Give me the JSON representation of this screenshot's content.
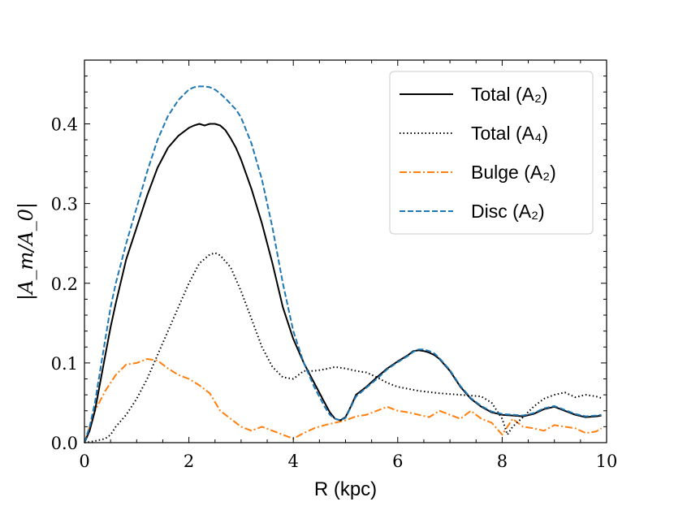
{
  "chart_data": {
    "type": "line",
    "title": "",
    "xlabel": "R (kpc)",
    "ylabel": "|A_m/A_0|",
    "xlim": [
      0,
      10
    ],
    "ylim": [
      0,
      0.48
    ],
    "x_ticks": [
      0,
      2,
      4,
      6,
      8,
      10
    ],
    "x_tick_labels": [
      "0",
      "2",
      "4",
      "6",
      "8",
      "10"
    ],
    "y_ticks": [
      0.0,
      0.1,
      0.2,
      0.3,
      0.4
    ],
    "y_tick_labels": [
      "0.0",
      "0.1",
      "0.2",
      "0.3",
      "0.4"
    ],
    "grid": false,
    "legend_position": "top-right",
    "series": [
      {
        "name": "Total (A_2)",
        "legend_label": "Total (A₂)",
        "color": "#000000",
        "style": "solid",
        "x": [
          0,
          0.1,
          0.2,
          0.3,
          0.4,
          0.5,
          0.6,
          0.8,
          1.0,
          1.2,
          1.4,
          1.6,
          1.8,
          2.0,
          2.1,
          2.2,
          2.3,
          2.4,
          2.5,
          2.6,
          2.7,
          2.8,
          2.9,
          3.0,
          3.2,
          3.4,
          3.6,
          3.8,
          4.0,
          4.2,
          4.4,
          4.6,
          4.7,
          4.8,
          4.9,
          5.0,
          5.1,
          5.2,
          5.4,
          5.6,
          5.8,
          6.0,
          6.2,
          6.3,
          6.4,
          6.5,
          6.6,
          6.7,
          6.8,
          7.0,
          7.2,
          7.4,
          7.6,
          7.8,
          8.0,
          8.2,
          8.4,
          8.6,
          8.8,
          9.0,
          9.2,
          9.4,
          9.6,
          9.8,
          9.9
        ],
        "y": [
          0.0,
          0.015,
          0.04,
          0.075,
          0.11,
          0.145,
          0.175,
          0.23,
          0.27,
          0.31,
          0.345,
          0.37,
          0.385,
          0.395,
          0.398,
          0.4,
          0.398,
          0.4,
          0.4,
          0.398,
          0.392,
          0.382,
          0.37,
          0.355,
          0.318,
          0.275,
          0.225,
          0.17,
          0.13,
          0.1,
          0.075,
          0.05,
          0.038,
          0.03,
          0.028,
          0.032,
          0.045,
          0.06,
          0.07,
          0.082,
          0.093,
          0.102,
          0.11,
          0.115,
          0.116,
          0.115,
          0.113,
          0.11,
          0.105,
          0.09,
          0.07,
          0.055,
          0.045,
          0.038,
          0.035,
          0.034,
          0.033,
          0.036,
          0.042,
          0.045,
          0.04,
          0.035,
          0.032,
          0.033,
          0.034
        ]
      },
      {
        "name": "Total (A_4)",
        "legend_label": "Total (A₄)",
        "color": "#000000",
        "style": "dotted",
        "x": [
          0,
          0.2,
          0.4,
          0.5,
          0.6,
          0.8,
          1.0,
          1.2,
          1.4,
          1.6,
          1.8,
          2.0,
          2.2,
          2.4,
          2.5,
          2.6,
          2.8,
          3.0,
          3.2,
          3.4,
          3.6,
          3.8,
          4.0,
          4.2,
          4.4,
          4.6,
          4.8,
          5.0,
          5.2,
          5.4,
          5.6,
          5.8,
          6.0,
          6.4,
          6.8,
          7.2,
          7.6,
          7.8,
          8.0,
          8.1,
          8.2,
          8.4,
          8.6,
          8.8,
          9.0,
          9.2,
          9.4,
          9.6,
          9.8,
          9.9
        ],
        "y": [
          0.0,
          0.002,
          0.005,
          0.01,
          0.02,
          0.035,
          0.055,
          0.08,
          0.11,
          0.14,
          0.17,
          0.2,
          0.225,
          0.236,
          0.238,
          0.235,
          0.22,
          0.19,
          0.155,
          0.12,
          0.095,
          0.082,
          0.08,
          0.09,
          0.09,
          0.092,
          0.095,
          0.093,
          0.09,
          0.088,
          0.082,
          0.075,
          0.07,
          0.065,
          0.062,
          0.06,
          0.058,
          0.05,
          0.03,
          0.01,
          0.02,
          0.032,
          0.045,
          0.055,
          0.06,
          0.063,
          0.057,
          0.06,
          0.058,
          0.056
        ]
      },
      {
        "name": "Bulge (A_2)",
        "legend_label": "Bulge (A₂)",
        "color": "#ff7f0e",
        "style": "dashdot",
        "x": [
          0,
          0.1,
          0.2,
          0.4,
          0.6,
          0.8,
          1.0,
          1.2,
          1.4,
          1.6,
          1.8,
          2.0,
          2.2,
          2.4,
          2.6,
          2.8,
          3.0,
          3.2,
          3.4,
          3.6,
          3.8,
          4.0,
          4.2,
          4.4,
          4.6,
          4.8,
          5.0,
          5.2,
          5.4,
          5.6,
          5.8,
          6.0,
          6.2,
          6.4,
          6.6,
          6.8,
          7.0,
          7.2,
          7.4,
          7.6,
          7.8,
          8.0,
          8.2,
          8.4,
          8.6,
          8.8,
          9.0,
          9.2,
          9.4,
          9.6,
          9.8,
          9.9
        ],
        "y": [
          0.0,
          0.02,
          0.04,
          0.065,
          0.085,
          0.098,
          0.1,
          0.105,
          0.103,
          0.093,
          0.085,
          0.08,
          0.072,
          0.062,
          0.04,
          0.03,
          0.02,
          0.015,
          0.02,
          0.015,
          0.01,
          0.005,
          0.012,
          0.018,
          0.022,
          0.025,
          0.028,
          0.033,
          0.035,
          0.04,
          0.045,
          0.04,
          0.038,
          0.035,
          0.032,
          0.04,
          0.035,
          0.03,
          0.04,
          0.03,
          0.025,
          0.01,
          0.03,
          0.02,
          0.018,
          0.015,
          0.022,
          0.02,
          0.018,
          0.012,
          0.014,
          0.018
        ]
      },
      {
        "name": "Disc (A_2)",
        "legend_label": "Disc (A₂)",
        "color": "#1f77b4",
        "style": "dashed",
        "x": [
          0,
          0.1,
          0.2,
          0.3,
          0.4,
          0.5,
          0.6,
          0.8,
          1.0,
          1.2,
          1.4,
          1.6,
          1.8,
          2.0,
          2.1,
          2.2,
          2.3,
          2.4,
          2.5,
          2.6,
          2.7,
          2.8,
          2.9,
          3.0,
          3.2,
          3.4,
          3.6,
          3.8,
          4.0,
          4.2,
          4.4,
          4.6,
          4.7,
          4.8,
          4.9,
          5.0,
          5.1,
          5.2,
          5.4,
          5.6,
          5.8,
          6.0,
          6.2,
          6.3,
          6.4,
          6.5,
          6.6,
          6.7,
          6.8,
          7.0,
          7.2,
          7.4,
          7.6,
          7.8,
          8.0,
          8.2,
          8.4,
          8.6,
          8.8,
          9.0,
          9.2,
          9.4,
          9.6,
          9.8,
          9.9
        ],
        "y": [
          0.0,
          0.02,
          0.05,
          0.09,
          0.13,
          0.17,
          0.2,
          0.25,
          0.295,
          0.34,
          0.38,
          0.41,
          0.43,
          0.443,
          0.446,
          0.447,
          0.447,
          0.446,
          0.443,
          0.438,
          0.432,
          0.425,
          0.418,
          0.408,
          0.375,
          0.33,
          0.27,
          0.2,
          0.14,
          0.1,
          0.07,
          0.045,
          0.035,
          0.03,
          0.028,
          0.031,
          0.044,
          0.058,
          0.069,
          0.08,
          0.092,
          0.101,
          0.109,
          0.114,
          0.117,
          0.117,
          0.115,
          0.112,
          0.106,
          0.091,
          0.071,
          0.056,
          0.046,
          0.039,
          0.036,
          0.035,
          0.034,
          0.037,
          0.043,
          0.046,
          0.041,
          0.036,
          0.033,
          0.034,
          0.035
        ]
      }
    ]
  }
}
